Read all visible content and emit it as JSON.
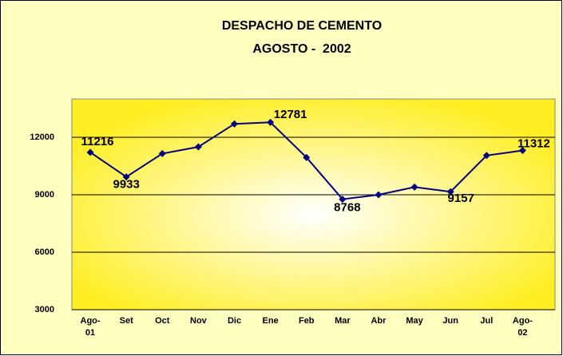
{
  "chart_data": {
    "type": "line",
    "title": "DESPACHO DE CEMENTO",
    "subtitle": "AGOSTO -  2002",
    "categories": [
      "Ago-01",
      "Set",
      "Oct",
      "Nov",
      "Dic",
      "Ene",
      "Feb",
      "Mar",
      "Abr",
      "May",
      "Jun",
      "Jul",
      "Ago-02"
    ],
    "values": [
      11216,
      9933,
      11150,
      11500,
      12700,
      12781,
      10950,
      8768,
      9000,
      9400,
      9157,
      11050,
      11312
    ],
    "value_labels": [
      "11216",
      "9933",
      null,
      null,
      null,
      "12781",
      null,
      "8768",
      null,
      null,
      "9157",
      null,
      "11312"
    ],
    "color": "#000080",
    "ylim": [
      3000,
      14000
    ],
    "yticks": [
      3000,
      6000,
      9000,
      12000
    ],
    "grid": true
  }
}
